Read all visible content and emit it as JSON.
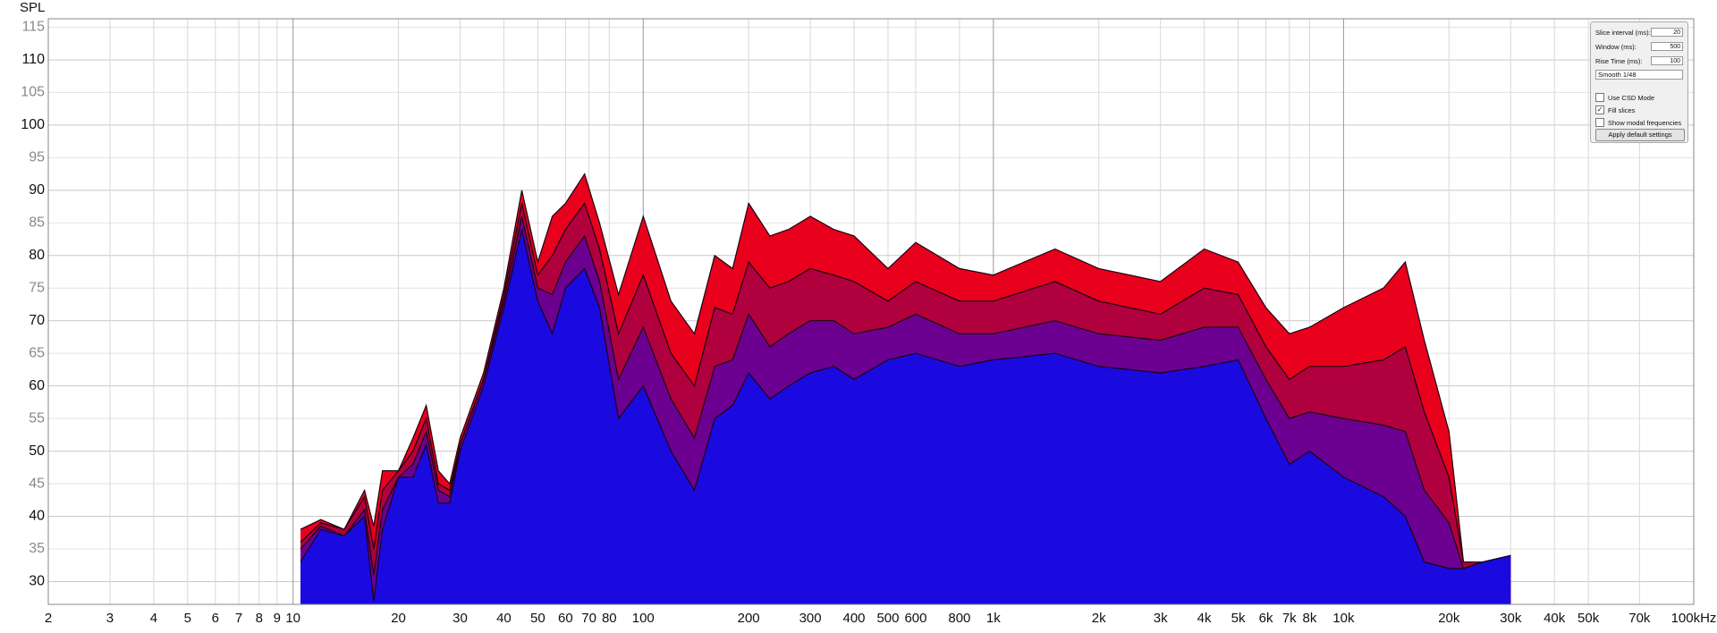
{
  "chart_data": {
    "type": "waterfall",
    "y_label": "SPL",
    "x": [
      10.5,
      12,
      14,
      16,
      17,
      18,
      20,
      22,
      24,
      26,
      28,
      30,
      35,
      40,
      45,
      50,
      55,
      60,
      68,
      75,
      85,
      100,
      120,
      140,
      160,
      180,
      200,
      230,
      260,
      300,
      350,
      400,
      500,
      600,
      800,
      1000,
      1500,
      2000,
      3000,
      4000,
      5000,
      6000,
      7000,
      8000,
      10000,
      13000,
      15000,
      17000,
      20000,
      22000,
      25000,
      30000
    ],
    "series": [
      {
        "color": "#e8001c",
        "values": [
          38,
          39.5,
          38,
          44,
          38.5,
          47,
          47,
          52,
          57,
          47,
          45,
          52,
          62,
          75,
          90,
          79,
          86,
          88,
          92.5,
          85,
          74,
          86,
          73,
          68,
          80,
          78,
          88,
          83,
          84,
          86,
          84,
          83,
          78,
          82,
          78,
          77,
          81,
          78,
          76,
          81,
          79,
          72,
          68,
          69,
          72,
          75,
          79,
          67,
          53,
          33,
          33,
          34
        ]
      },
      {
        "color": "#b0003e",
        "values": [
          36,
          39,
          38,
          43,
          35,
          44,
          47,
          50,
          55,
          45,
          44,
          51,
          61,
          74,
          88,
          77,
          80,
          84,
          88,
          81,
          68,
          77,
          65,
          60,
          72,
          71,
          79,
          75,
          76,
          78,
          77,
          76,
          73,
          76,
          73,
          73,
          76,
          73,
          71,
          75,
          74,
          66,
          61,
          63,
          63,
          64,
          66,
          56,
          46,
          33,
          33,
          34
        ]
      },
      {
        "color": "#6c0090",
        "values": [
          35,
          38.5,
          37,
          41,
          31,
          41,
          46,
          48,
          53,
          44,
          43,
          51,
          61,
          73,
          86,
          75,
          74,
          79,
          83,
          76,
          61,
          69,
          58,
          52,
          63,
          64,
          71,
          66,
          68,
          70,
          70,
          68,
          69,
          71,
          68,
          68,
          70,
          68,
          67,
          69,
          69,
          61,
          55,
          56,
          55,
          54,
          53,
          44,
          39,
          32,
          33,
          34
        ]
      },
      {
        "color": "#1a0ae0",
        "values": [
          33,
          38,
          37,
          40,
          27,
          38,
          46,
          46,
          51,
          42,
          42,
          50,
          60,
          72,
          84,
          73,
          68,
          75,
          78,
          72,
          55,
          60,
          50,
          44,
          55,
          57,
          62,
          58,
          60,
          62,
          63,
          61,
          64,
          65,
          63,
          64,
          65,
          63,
          62,
          63,
          64,
          55,
          48,
          50,
          46,
          43,
          40,
          33,
          32,
          32,
          33,
          34
        ]
      }
    ],
    "xlim": [
      2,
      100000
    ],
    "log_x": true,
    "xticks": [
      2,
      3,
      4,
      5,
      6,
      7,
      8,
      9,
      10,
      20,
      30,
      40,
      50,
      60,
      70,
      80,
      100,
      200,
      300,
      400,
      500,
      600,
      800,
      {
        "value": 1000,
        "label": "1k"
      },
      {
        "value": 2000,
        "label": "2k"
      },
      {
        "value": 3000,
        "label": "3k"
      },
      {
        "value": 4000,
        "label": "4k"
      },
      {
        "value": 5000,
        "label": "5k"
      },
      {
        "value": 6000,
        "label": "6k"
      },
      {
        "value": 7000,
        "label": "7k"
      },
      {
        "value": 8000,
        "label": "8k"
      },
      {
        "value": 10000,
        "label": "10k"
      },
      {
        "value": 20000,
        "label": "20k"
      },
      {
        "value": 30000,
        "label": "30k"
      },
      {
        "value": 40000,
        "label": "40k"
      },
      {
        "value": 50000,
        "label": "50k"
      },
      {
        "value": 70000,
        "label": "70k"
      },
      {
        "value": 100000,
        "label": "100kHz"
      }
    ],
    "ylim": [
      26.5,
      116.3
    ],
    "yticks": [
      30,
      35,
      40,
      45,
      50,
      55,
      60,
      65,
      70,
      75,
      80,
      85,
      90,
      95,
      100,
      105,
      110,
      115
    ],
    "grid": true
  },
  "controls": {
    "slice_interval_label": "Slice interval (ms):",
    "slice_interval": 20,
    "window_label": "Window (ms):",
    "window": 500,
    "rise_time_label": "Rise Time (ms):",
    "rise_time": 100,
    "smoothing": "Smooth 1/48",
    "csd_mode": "Use CSD Mode",
    "fill_slices": "Fill slices",
    "modal_frequencies": "Show modal frequencies",
    "apply_button": "Apply default settings"
  }
}
